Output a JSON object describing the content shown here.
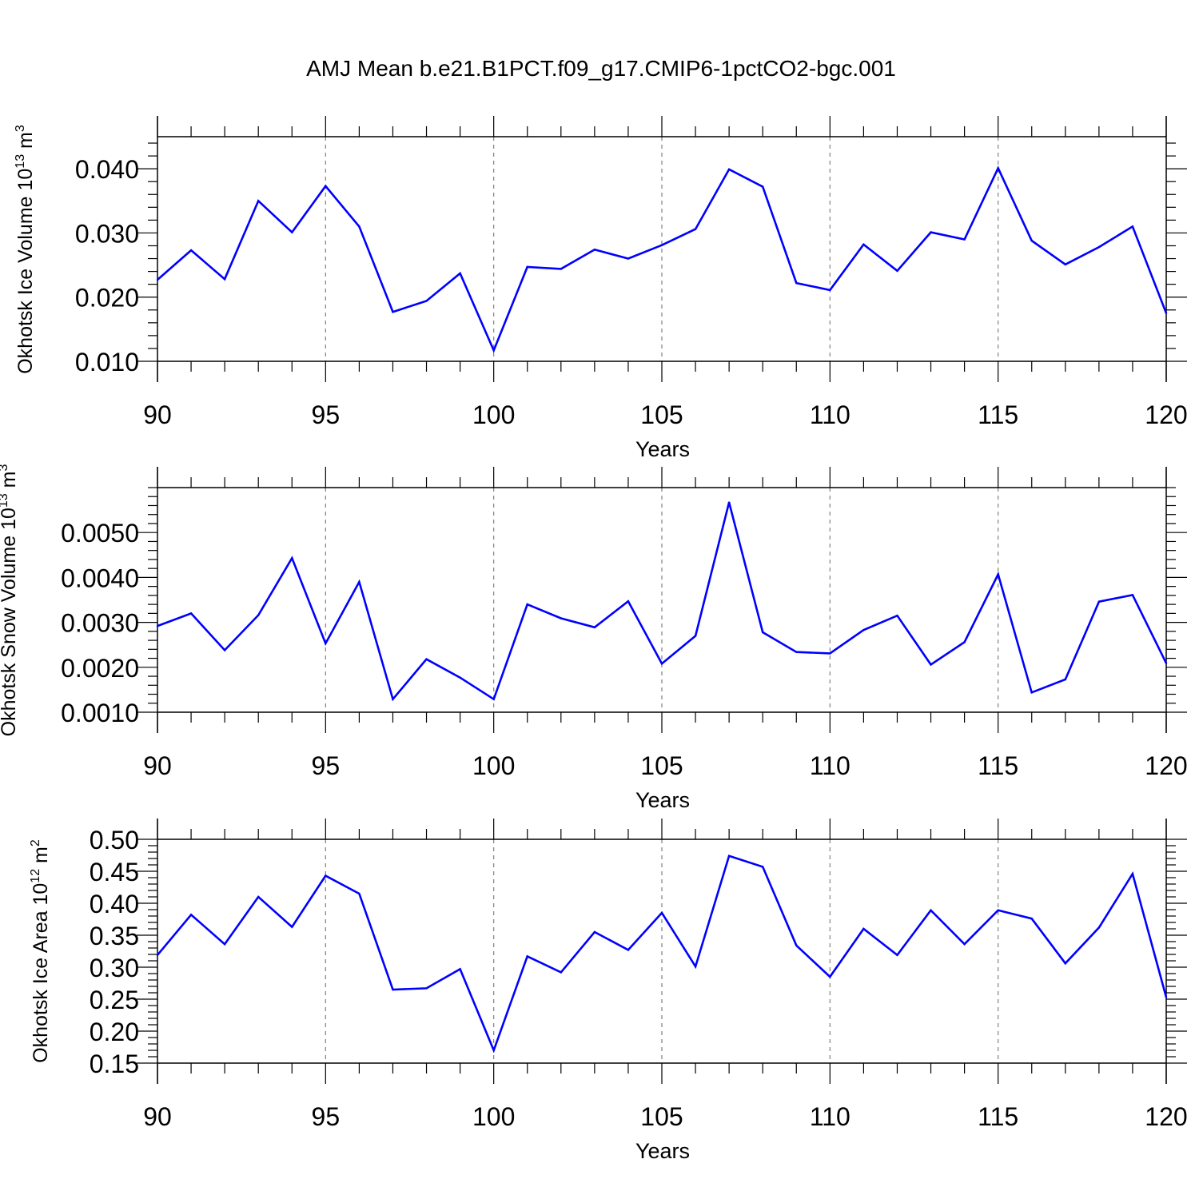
{
  "title": "AMJ Mean b.e21.B1PCT.f09_g17.CMIP6-1pctCO2-bgc.001",
  "colors": {
    "line": "#0000ff",
    "axis": "#000000",
    "grid": "#808080",
    "background": "#ffffff"
  },
  "chart_data": [
    {
      "type": "line",
      "ylabel": "Okhotsk Ice Volume 10",
      "ylabel_exp": "13",
      "ylabel_unit": "m",
      "ylabel_unit_exp": "3",
      "xlabel": "Years",
      "xlim": [
        90,
        120
      ],
      "ylim": [
        0.01,
        0.045
      ],
      "xticks": [
        90,
        95,
        100,
        105,
        110,
        115,
        120
      ],
      "xtick_labels": [
        "90",
        "95",
        "100",
        "105",
        "110",
        "115",
        "120"
      ],
      "yticks": [
        0.01,
        0.02,
        0.03,
        0.04
      ],
      "ytick_labels": [
        "0.010",
        "0.020",
        "0.030",
        "0.040"
      ],
      "grid": "x-dashed",
      "x": [
        90,
        91,
        92,
        93,
        94,
        95,
        96,
        97,
        98,
        99,
        100,
        101,
        102,
        103,
        104,
        105,
        106,
        107,
        108,
        109,
        110,
        111,
        112,
        113,
        114,
        115,
        116,
        117,
        118,
        119,
        120
      ],
      "values": [
        0.0227,
        0.0273,
        0.0228,
        0.035,
        0.0301,
        0.0373,
        0.031,
        0.0177,
        0.0194,
        0.0237,
        0.0117,
        0.0247,
        0.0244,
        0.0274,
        0.026,
        0.0281,
        0.0306,
        0.0399,
        0.0372,
        0.0222,
        0.0211,
        0.0282,
        0.0241,
        0.0301,
        0.029,
        0.0401,
        0.0288,
        0.0251,
        0.0278,
        0.031,
        0.0175
      ]
    },
    {
      "type": "line",
      "ylabel": "Okhotsk Snow Volume 10",
      "ylabel_exp": "13",
      "ylabel_unit": "m",
      "ylabel_unit_exp": "3",
      "xlabel": "Years",
      "xlim": [
        90,
        120
      ],
      "ylim": [
        0.001,
        0.006
      ],
      "xticks": [
        90,
        95,
        100,
        105,
        110,
        115,
        120
      ],
      "xtick_labels": [
        "90",
        "95",
        "100",
        "105",
        "110",
        "115",
        "120"
      ],
      "yticks": [
        0.001,
        0.002,
        0.003,
        0.004,
        0.005
      ],
      "ytick_labels": [
        "0.0010",
        "0.0020",
        "0.0030",
        "0.0040",
        "0.0050"
      ],
      "grid": "x-dashed",
      "x": [
        90,
        91,
        92,
        93,
        94,
        95,
        96,
        97,
        98,
        99,
        100,
        101,
        102,
        103,
        104,
        105,
        106,
        107,
        108,
        109,
        110,
        111,
        112,
        113,
        114,
        115,
        116,
        117,
        118,
        119,
        120
      ],
      "values": [
        0.00292,
        0.0032,
        0.00238,
        0.00316,
        0.00443,
        0.00253,
        0.0039,
        0.00129,
        0.00218,
        0.00177,
        0.00129,
        0.0034,
        0.00309,
        0.00289,
        0.00347,
        0.00208,
        0.0027,
        0.00567,
        0.00278,
        0.00234,
        0.00231,
        0.00283,
        0.00315,
        0.00206,
        0.00256,
        0.00407,
        0.00144,
        0.00173,
        0.00346,
        0.00361,
        0.00209
      ]
    },
    {
      "type": "line",
      "ylabel": "Okhotsk Ice Area 10",
      "ylabel_exp": "12",
      "ylabel_unit": "m",
      "ylabel_unit_exp": "2",
      "xlabel": "Years",
      "xlim": [
        90,
        120
      ],
      "ylim": [
        0.15,
        0.5
      ],
      "xticks": [
        90,
        95,
        100,
        105,
        110,
        115,
        120
      ],
      "xtick_labels": [
        "90",
        "95",
        "100",
        "105",
        "110",
        "115",
        "120"
      ],
      "yticks": [
        0.15,
        0.2,
        0.25,
        0.3,
        0.35,
        0.4,
        0.45,
        0.5
      ],
      "ytick_labels": [
        "0.15",
        "0.20",
        "0.25",
        "0.30",
        "0.35",
        "0.40",
        "0.45",
        "0.50"
      ],
      "grid": "x-dashed",
      "x": [
        90,
        91,
        92,
        93,
        94,
        95,
        96,
        97,
        98,
        99,
        100,
        101,
        102,
        103,
        104,
        105,
        106,
        107,
        108,
        109,
        110,
        111,
        112,
        113,
        114,
        115,
        116,
        117,
        118,
        119,
        120
      ],
      "values": [
        0.319,
        0.382,
        0.336,
        0.41,
        0.363,
        0.443,
        0.415,
        0.265,
        0.267,
        0.297,
        0.17,
        0.317,
        0.292,
        0.355,
        0.327,
        0.385,
        0.301,
        0.474,
        0.457,
        0.334,
        0.285,
        0.36,
        0.319,
        0.389,
        0.336,
        0.389,
        0.376,
        0.306,
        0.362,
        0.446,
        0.253
      ]
    }
  ]
}
